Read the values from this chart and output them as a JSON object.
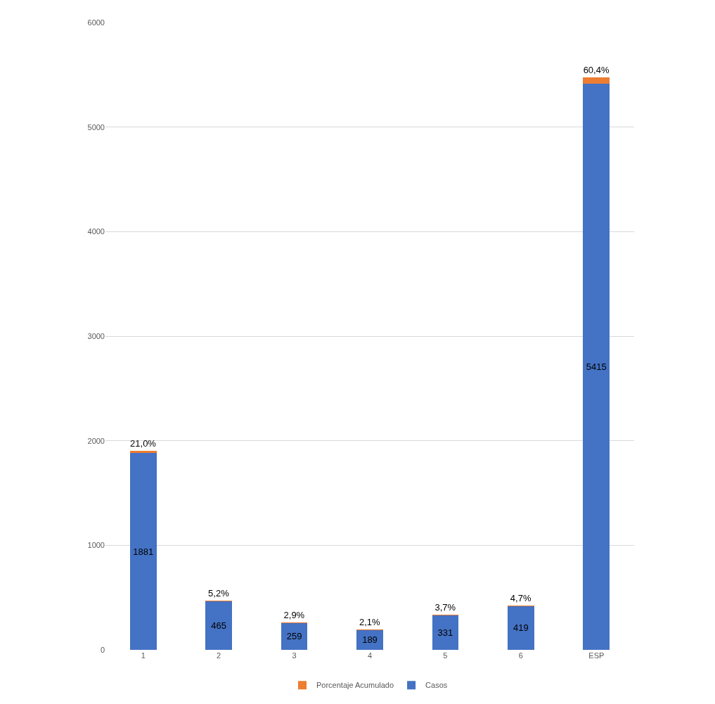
{
  "chart_data": {
    "type": "bar",
    "stacked": true,
    "categories": [
      "1",
      "2",
      "3",
      "4",
      "5",
      "6",
      "ESP"
    ],
    "series": [
      {
        "name": "Casos",
        "color": "#4472c4",
        "values": [
          1881,
          465,
          259,
          189,
          331,
          419,
          5415
        ],
        "value_labels": [
          "1881",
          "465",
          "259",
          "189",
          "331",
          "419",
          "5415"
        ]
      },
      {
        "name": "Porcentaje Acumulado",
        "color": "#ed7d31",
        "values": [
          21.0,
          5.2,
          2.9,
          2.1,
          3.7,
          4.7,
          60.4
        ],
        "value_labels": [
          "21,0%",
          "5,2%",
          "2,9%",
          "2,1%",
          "3,7%",
          "4,7%",
          "60,4%"
        ]
      }
    ],
    "ylim": [
      0,
      6000
    ],
    "yticks": [
      0,
      1000,
      2000,
      3000,
      4000,
      5000,
      6000
    ],
    "grid": "y",
    "legend": "bottom"
  }
}
